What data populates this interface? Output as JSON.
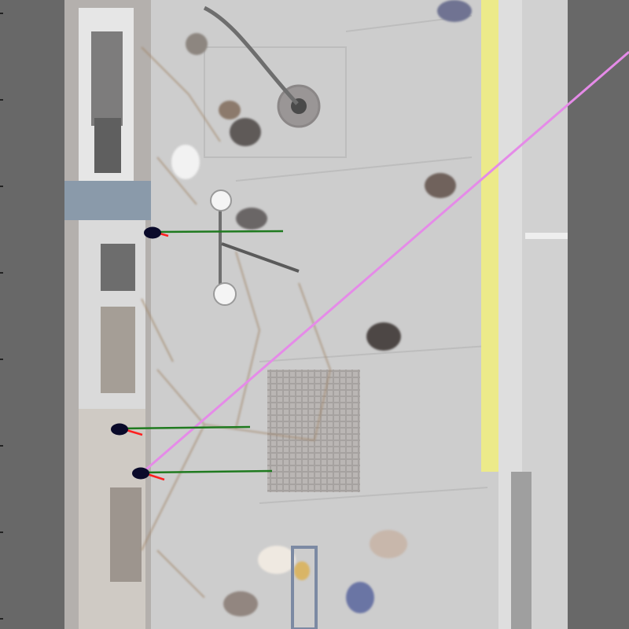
{
  "scene": {
    "type": "overhead street view",
    "colors": {
      "side_bands": "#666666",
      "pavement": "#cfcfcf",
      "building": "#b9b9b9",
      "curb_yellow": "#e9e27a",
      "trajectory_line": "#e58be8",
      "heading_arrow": "#ff2020",
      "velocity_line": "#1f7a1f",
      "agent_marker": "#0a0a2a"
    }
  },
  "overlay": {
    "agents": [
      {
        "id": "agent-1"
      },
      {
        "id": "agent-2"
      },
      {
        "id": "agent-3"
      }
    ]
  }
}
